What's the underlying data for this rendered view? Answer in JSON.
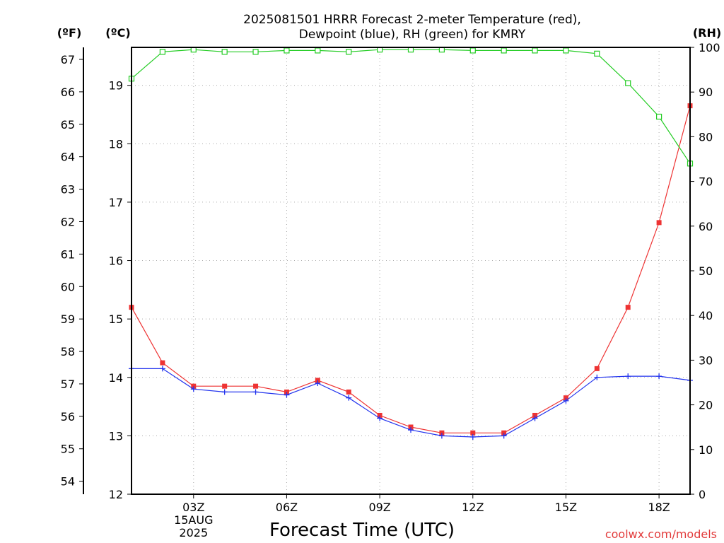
{
  "chart_data": {
    "type": "line",
    "title_line1": "2025081501 HRRR Forecast 2-meter Temperature (red),",
    "title_line2": "Dewpoint (blue), RH (green) for KMRY",
    "xlabel": "Forecast Time (UTC)",
    "left_outer_unit": "(ºF)",
    "left_inner_unit": "(ºC)",
    "right_unit": "(RH)",
    "credit": "coolwx.com/models",
    "x_ticks": [
      "03Z",
      "06Z",
      "09Z",
      "12Z",
      "15Z",
      "18Z"
    ],
    "x_date_lines": [
      "15AUG",
      "2025"
    ],
    "x_range_hours": [
      1,
      19
    ],
    "x": [
      1,
      2,
      3,
      4,
      5,
      6,
      7,
      8,
      9,
      10,
      11,
      12,
      13,
      14,
      15,
      16,
      17,
      18,
      19
    ],
    "celsius_ticks": [
      "12",
      "13",
      "14",
      "15",
      "16",
      "17",
      "18",
      "19"
    ],
    "celsius_range": [
      12,
      19.65
    ],
    "fahrenheit_ticks": [
      "54",
      "55",
      "56",
      "57",
      "58",
      "59",
      "60",
      "61",
      "62",
      "63",
      "64",
      "65",
      "66",
      "67"
    ],
    "rh_ticks": [
      "0",
      "10",
      "20",
      "30",
      "40",
      "50",
      "60",
      "70",
      "80",
      "90",
      "100"
    ],
    "rh_range": [
      0,
      100
    ],
    "grid": true,
    "series": [
      {
        "key": "temperature",
        "axis": "celsius",
        "color": "#ee3333",
        "marker": "filled-square",
        "values": [
          15.2,
          14.25,
          13.85,
          13.85,
          13.85,
          13.75,
          13.95,
          13.75,
          13.35,
          13.15,
          13.05,
          13.05,
          13.05,
          13.35,
          13.65,
          14.15,
          15.2,
          16.65,
          18.65
        ]
      },
      {
        "key": "dewpoint",
        "axis": "celsius",
        "color": "#2233ee",
        "marker": "plus",
        "values": [
          14.15,
          14.15,
          13.8,
          13.75,
          13.75,
          13.7,
          13.9,
          13.65,
          13.3,
          13.1,
          13.0,
          12.98,
          13.0,
          13.3,
          13.6,
          14.0,
          14.02,
          14.02,
          13.95
        ]
      },
      {
        "key": "rh",
        "axis": "rh",
        "color": "#22cc22",
        "marker": "open-square",
        "values": [
          93,
          99,
          99.5,
          99,
          99,
          99.3,
          99.3,
          99,
          99.5,
          99.5,
          99.5,
          99.3,
          99.3,
          99.3,
          99.3,
          98.6,
          92,
          84.5,
          74
        ]
      }
    ]
  }
}
